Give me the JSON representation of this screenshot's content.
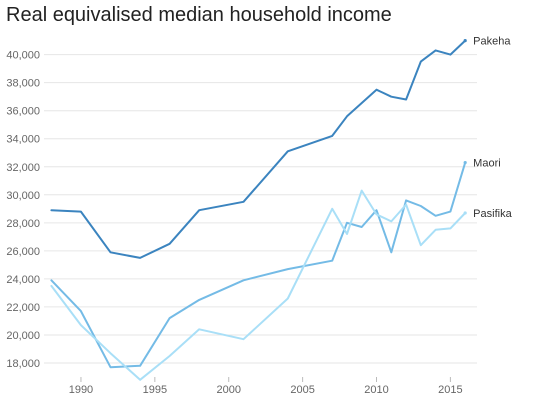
{
  "chart_data": {
    "type": "line",
    "title": "Real equivalised median household income",
    "xlabel": "",
    "ylabel": "",
    "xlim": [
      1987.5,
      2016.8
    ],
    "ylim": [
      17000,
      41900
    ],
    "grid": true,
    "legend": "inline-right",
    "x_ticks": [
      1990,
      1995,
      2000,
      2005,
      2010,
      2015
    ],
    "y_ticks": [
      18000,
      20000,
      22000,
      24000,
      26000,
      28000,
      30000,
      32000,
      34000,
      36000,
      38000,
      40000
    ],
    "x_tick_labels": [
      "1990",
      "1995",
      "2000",
      "2005",
      "2010",
      "2015"
    ],
    "y_tick_labels": [
      "18,000",
      "20,000",
      "22,000",
      "24,000",
      "26,000",
      "28,000",
      "30,000",
      "32,000",
      "34,000",
      "36,000",
      "38,000",
      "40,000"
    ],
    "series": [
      {
        "name": "Pakeha",
        "color": "#3b84bf",
        "x": [
          1988,
          1990,
          1992,
          1994,
          1996,
          1998,
          2001,
          2004,
          2007,
          2008,
          2010,
          2011,
          2012,
          2013,
          2014,
          2015,
          2016
        ],
        "y": [
          28900,
          28800,
          25900,
          25500,
          26500,
          28900,
          29500,
          33100,
          34200,
          35600,
          37500,
          37000,
          36800,
          39500,
          40300,
          40000,
          41000
        ]
      },
      {
        "name": "Maori",
        "color": "#74bbe6",
        "x": [
          1988,
          1990,
          1992,
          1994,
          1996,
          1998,
          2001,
          2004,
          2007,
          2008,
          2009,
          2010,
          2011,
          2012,
          2013,
          2014,
          2015,
          2016
        ],
        "y": [
          23900,
          21700,
          17700,
          17800,
          21200,
          22500,
          23900,
          24700,
          25300,
          28000,
          27700,
          28900,
          25900,
          29600,
          29200,
          28500,
          28800,
          32300
        ]
      },
      {
        "name": "Pasifika",
        "color": "#a9dff7",
        "x": [
          1988,
          1990,
          1992,
          1994,
          1996,
          1998,
          2001,
          2004,
          2007,
          2008,
          2009,
          2010,
          2011,
          2012,
          2013,
          2014,
          2015,
          2016
        ],
        "y": [
          23500,
          20700,
          18700,
          16800,
          18500,
          20400,
          19700,
          22600,
          29000,
          27200,
          30300,
          28600,
          28100,
          29300,
          26400,
          27500,
          27600,
          28700
        ]
      }
    ]
  }
}
